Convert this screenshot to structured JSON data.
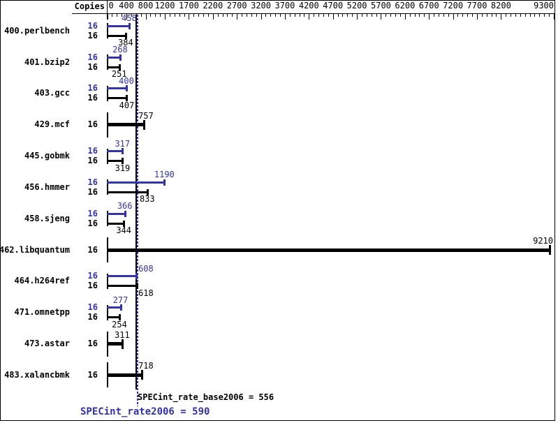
{
  "summary": {
    "base": {
      "text": "SPECint_rate_base2006 = 556",
      "value": 556
    },
    "peak": {
      "text": "SPECint_rate2006 = 590",
      "value": 590
    }
  },
  "colors": {
    "peak_blue": "#3333aa",
    "base_black": "#000000",
    "background": "#ffffff"
  },
  "chart_data": {
    "type": "bar",
    "orientation": "horizontal",
    "title": "",
    "copies_column_header": "Copies",
    "xlim": [
      0,
      9320
    ],
    "x_major_ticks": [
      0,
      400,
      800,
      1200,
      1700,
      2200,
      2700,
      3200,
      3700,
      4200,
      4700,
      5200,
      5700,
      6200,
      6700,
      7200,
      7700,
      8200,
      9300
    ],
    "x_minor_tick_step": 100,
    "grid": false,
    "legend_position": "none",
    "categories": [
      "400.perlbench",
      "401.bzip2",
      "403.gcc",
      "429.mcf",
      "445.gobmk",
      "456.hmmer",
      "458.sjeng",
      "462.libquantum",
      "464.h264ref",
      "471.omnetpp",
      "473.astar",
      "483.xalancbmk"
    ],
    "benchmarks": [
      {
        "name": "400.perlbench",
        "copies": 16,
        "peak": 458,
        "base": 384,
        "single_bar": false
      },
      {
        "name": "401.bzip2",
        "copies": 16,
        "peak": 268,
        "base": 251,
        "single_bar": false
      },
      {
        "name": "403.gcc",
        "copies": 16,
        "peak": 400,
        "base": 407,
        "single_bar": false
      },
      {
        "name": "429.mcf",
        "copies": 16,
        "peak": null,
        "base": 757,
        "single_bar": true
      },
      {
        "name": "445.gobmk",
        "copies": 16,
        "peak": 317,
        "base": 319,
        "single_bar": false
      },
      {
        "name": "456.hmmer",
        "copies": 16,
        "peak": 1190,
        "base": 833,
        "single_bar": false
      },
      {
        "name": "458.sjeng",
        "copies": 16,
        "peak": 366,
        "base": 344,
        "single_bar": false
      },
      {
        "name": "462.libquantum",
        "copies": 16,
        "peak": null,
        "base": 9210,
        "single_bar": true
      },
      {
        "name": "464.h264ref",
        "copies": 16,
        "peak": 608,
        "base": 618,
        "single_bar": false
      },
      {
        "name": "471.omnetpp",
        "copies": 16,
        "peak": 277,
        "base": 254,
        "single_bar": false
      },
      {
        "name": "473.astar",
        "copies": 16,
        "peak": null,
        "base": 311,
        "single_bar": true
      },
      {
        "name": "483.xalancbmk",
        "copies": 16,
        "peak": null,
        "base": 718,
        "single_bar": true
      }
    ],
    "reference_lines": [
      {
        "label": "SPECint_rate_base2006",
        "value": 556,
        "style": "solid",
        "color": "#000000"
      },
      {
        "label": "SPECint_rate2006",
        "value": 590,
        "style": "dotted",
        "color": "#3333aa"
      }
    ]
  }
}
